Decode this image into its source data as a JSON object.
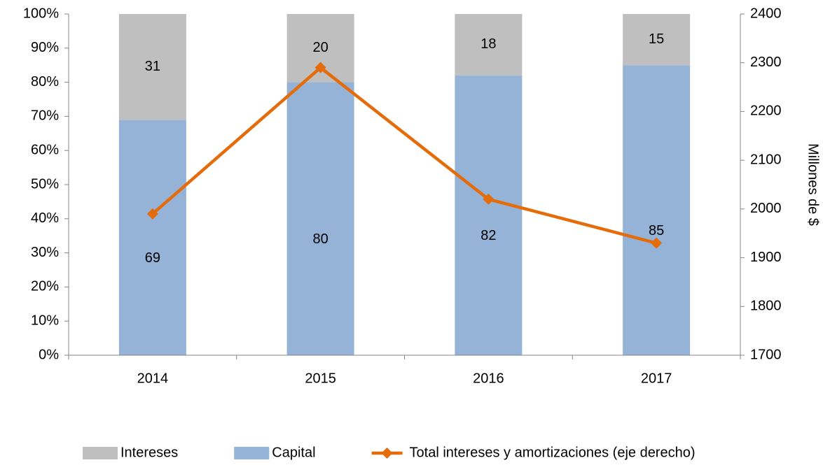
{
  "chart_data": {
    "type": "bar",
    "categories": [
      "2014",
      "2015",
      "2016",
      "2017"
    ],
    "series": [
      {
        "name": "Capital",
        "color": "#95b3d7",
        "values": [
          69,
          80,
          82,
          85
        ],
        "stacked": true
      },
      {
        "name": "Intereses",
        "color": "#bfbfbf",
        "values": [
          31,
          20,
          18,
          15
        ],
        "stacked": true
      },
      {
        "name": "Total intereses y amortizaciones (eje derecho)",
        "color": "#e46c0a",
        "type": "line",
        "axis": "y2",
        "values": [
          1990,
          2290,
          2020,
          1930
        ]
      }
    ],
    "ylim": [
      0,
      100
    ],
    "yticks": [
      {
        "value": 0,
        "label": "0%"
      },
      {
        "value": 10,
        "label": "10%"
      },
      {
        "value": 20,
        "label": "20%"
      },
      {
        "value": 30,
        "label": "30%"
      },
      {
        "value": 40,
        "label": "40%"
      },
      {
        "value": 50,
        "label": "50%"
      },
      {
        "value": 60,
        "label": "60%"
      },
      {
        "value": 70,
        "label": "70%"
      },
      {
        "value": 80,
        "label": "80%"
      },
      {
        "value": 90,
        "label": "90%"
      },
      {
        "value": 100,
        "label": "100%"
      }
    ],
    "y2lim": [
      1700,
      2400
    ],
    "y2ticks": [
      1700,
      1800,
      1900,
      2000,
      2100,
      2200,
      2300,
      2400
    ],
    "y2label": "Millones de $",
    "legend": "bottom"
  }
}
